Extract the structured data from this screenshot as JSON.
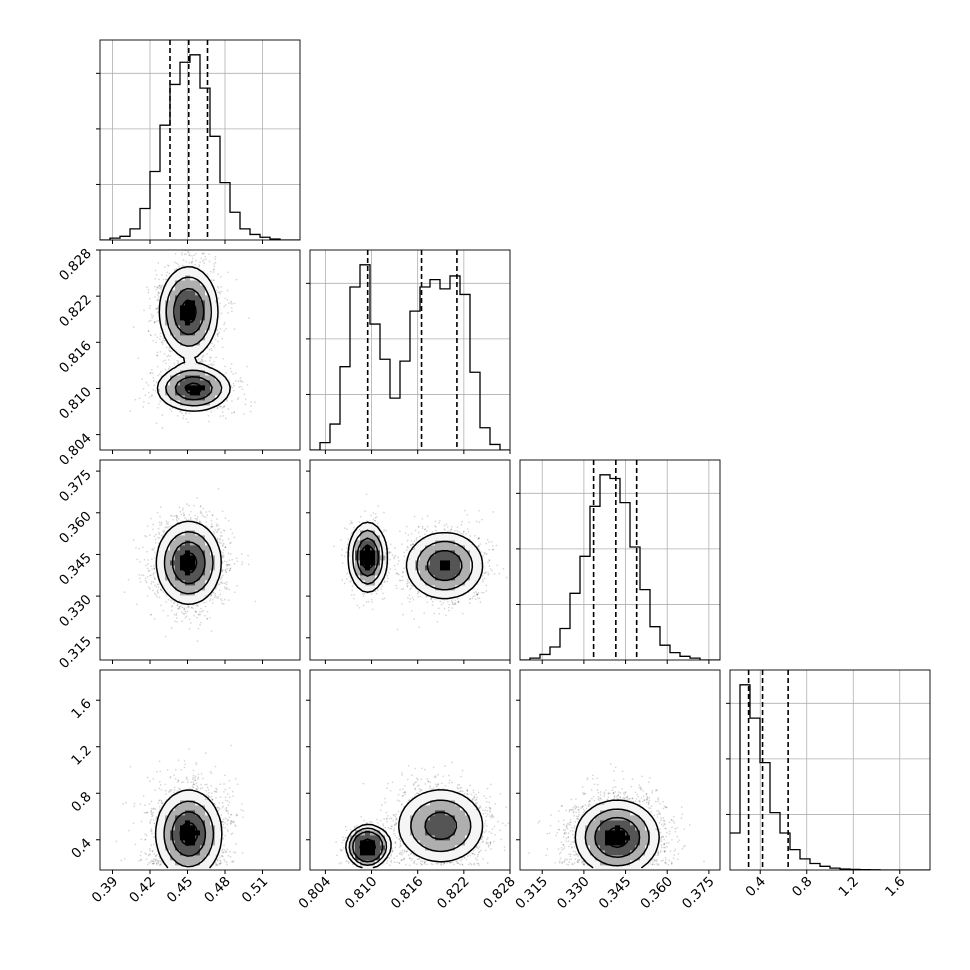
{
  "chart_data": {
    "type": "corner",
    "params": [
      {
        "name": "",
        "range": [
          0.38,
          0.54
        ],
        "ticks": [
          0.39,
          0.42,
          0.45,
          0.48,
          0.51
        ],
        "tick_labels": [
          "0.39",
          "0.42",
          "0.45",
          "0.48",
          "0.51"
        ],
        "quantiles": [
          0.436,
          0.451,
          0.466
        ]
      },
      {
        "name": "",
        "range": [
          0.802,
          0.828
        ],
        "ticks": [
          0.804,
          0.81,
          0.816,
          0.822,
          0.828
        ],
        "tick_labels": [
          "0.804",
          "0.810",
          "0.816",
          "0.822",
          "0.828"
        ],
        "quantiles": [
          0.8095,
          0.8165,
          0.8211
        ]
      },
      {
        "name": "",
        "range": [
          0.307,
          0.379
        ],
        "ticks": [
          0.315,
          0.33,
          0.345,
          0.36,
          0.375
        ],
        "tick_labels": [
          "0.315",
          "0.330",
          "0.345",
          "0.360",
          "0.375"
        ],
        "quantiles": [
          0.3335,
          0.3415,
          0.349
        ]
      },
      {
        "name": "",
        "range": [
          0.14,
          1.86
        ],
        "ticks": [
          0.4,
          0.8,
          1.2,
          1.6
        ],
        "tick_labels": [
          "0.4",
          "0.8",
          "1.2",
          "1.6"
        ],
        "quantiles": [
          0.3,
          0.42,
          0.64
        ]
      }
    ],
    "histograms": [
      {
        "param": 0,
        "bin_edges": [
          0.38,
          0.388,
          0.396,
          0.404,
          0.412,
          0.42,
          0.428,
          0.436,
          0.444,
          0.452,
          0.46,
          0.468,
          0.476,
          0.484,
          0.492,
          0.5,
          0.508,
          0.516,
          0.524,
          0.532,
          0.54
        ],
        "counts": [
          0,
          0.01,
          0.02,
          0.06,
          0.17,
          0.37,
          0.62,
          0.84,
          0.96,
          1.0,
          0.82,
          0.56,
          0.31,
          0.15,
          0.06,
          0.03,
          0.015,
          0.005,
          0,
          0
        ]
      },
      {
        "param": 1,
        "bin_edges": [
          0.802,
          0.8033,
          0.8046,
          0.8059,
          0.8072,
          0.8085,
          0.8098,
          0.8111,
          0.8124,
          0.8137,
          0.815,
          0.8163,
          0.8176,
          0.8189,
          0.8202,
          0.8215,
          0.8228,
          0.8241,
          0.8254,
          0.8267,
          0.828
        ],
        "counts": [
          0,
          0.04,
          0.14,
          0.45,
          0.88,
          1.0,
          0.68,
          0.49,
          0.28,
          0.48,
          0.75,
          0.88,
          0.92,
          0.87,
          0.94,
          0.84,
          0.42,
          0.12,
          0.03,
          0
        ]
      },
      {
        "param": 2,
        "bin_edges": [
          0.307,
          0.3106,
          0.3142,
          0.3178,
          0.3214,
          0.325,
          0.3286,
          0.3322,
          0.3358,
          0.3394,
          0.343,
          0.3466,
          0.3502,
          0.3538,
          0.3574,
          0.361,
          0.3646,
          0.3682,
          0.3718,
          0.3754,
          0.379
        ],
        "counts": [
          0,
          0.01,
          0.03,
          0.07,
          0.17,
          0.36,
          0.56,
          0.83,
          1.0,
          0.98,
          0.85,
          0.61,
          0.38,
          0.18,
          0.08,
          0.04,
          0.02,
          0.01,
          0,
          0
        ]
      },
      {
        "param": 3,
        "bin_edges": [
          0.14,
          0.226,
          0.312,
          0.398,
          0.484,
          0.57,
          0.656,
          0.742,
          0.828,
          0.914,
          1.0,
          1.086,
          1.172,
          1.258,
          1.344,
          1.43,
          1.516,
          1.602,
          1.688,
          1.774,
          1.86
        ],
        "counts": [
          0.2,
          1.0,
          0.82,
          0.58,
          0.31,
          0.2,
          0.11,
          0.06,
          0.035,
          0.02,
          0.01,
          0.005,
          0.003,
          0.002,
          0.001,
          0,
          0,
          0,
          0,
          0
        ]
      }
    ],
    "scatter_panels": [
      {
        "x_param": 0,
        "y_param": 1,
        "modes": [
          {
            "x": 0.451,
            "y": 0.82,
            "sx": 0.012,
            "sy": 0.003,
            "w": 0.62
          },
          {
            "x": 0.455,
            "y": 0.81,
            "sx": 0.015,
            "sy": 0.0015,
            "w": 0.38
          }
        ]
      },
      {
        "x_param": 0,
        "y_param": 2,
        "modes": [
          {
            "x": 0.451,
            "y": 0.342,
            "sx": 0.013,
            "sy": 0.0075,
            "w": 1.0
          }
        ]
      },
      {
        "x_param": 1,
        "y_param": 2,
        "modes": [
          {
            "x": 0.8095,
            "y": 0.344,
            "sx": 0.0012,
            "sy": 0.006,
            "w": 0.38
          },
          {
            "x": 0.8195,
            "y": 0.341,
            "sx": 0.0025,
            "sy": 0.006,
            "w": 0.62
          }
        ]
      },
      {
        "x_param": 0,
        "y_param": 3,
        "modes": [
          {
            "x": 0.451,
            "y": 0.45,
            "sx": 0.014,
            "sy": 0.2,
            "w": 1.0
          }
        ]
      },
      {
        "x_param": 1,
        "y_param": 3,
        "modes": [
          {
            "x": 0.8095,
            "y": 0.34,
            "sx": 0.0012,
            "sy": 0.08,
            "w": 0.35
          },
          {
            "x": 0.819,
            "y": 0.52,
            "sx": 0.003,
            "sy": 0.17,
            "w": 0.65
          }
        ]
      },
      {
        "x_param": 2,
        "y_param": 3,
        "modes": [
          {
            "x": 0.342,
            "y": 0.42,
            "sx": 0.008,
            "sy": 0.17,
            "w": 1.0
          }
        ]
      }
    ],
    "grid": true
  }
}
